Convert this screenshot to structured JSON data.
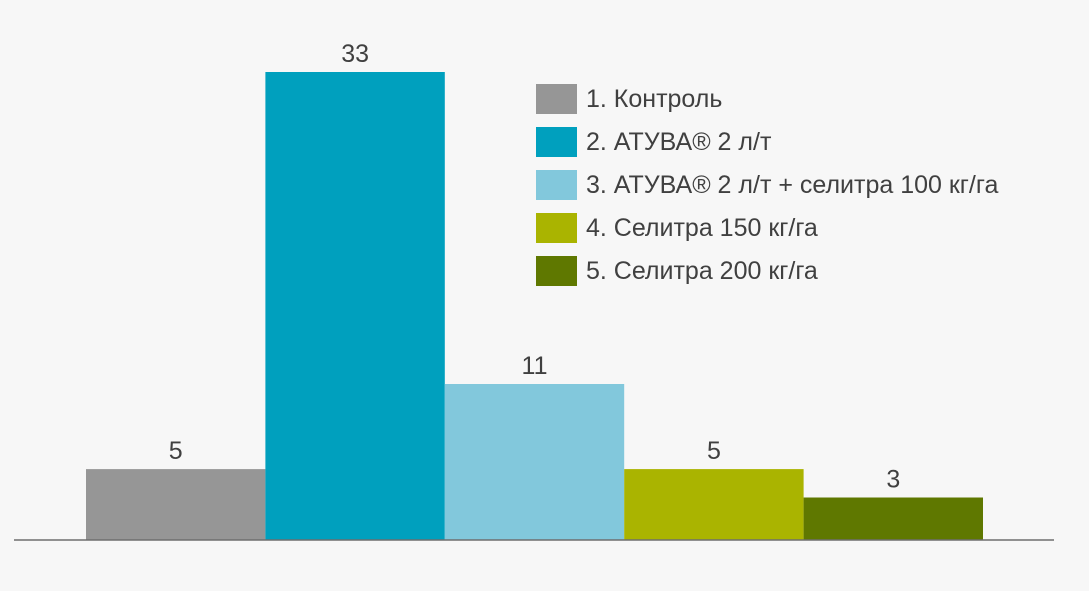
{
  "chart_data": {
    "type": "bar",
    "categories": [
      "1. Контроль",
      "2. АТУВА® 2 л/т",
      "3. АТУВА® 2 л/т + селитра 100 кг/га",
      "4. Селитра 150 кг/га",
      "5. Селитра 200 кг/га"
    ],
    "values": [
      5,
      33,
      11,
      5,
      3
    ],
    "colors": [
      "#969696",
      "#00a0be",
      "#82c8dc",
      "#aab400",
      "#5f7800"
    ],
    "data_labels": [
      "5",
      "33",
      "11",
      "5",
      "3"
    ],
    "title": "",
    "xlabel": "",
    "ylabel": "",
    "ylim": [
      0,
      35
    ],
    "grid": false,
    "legend": "top-right"
  }
}
